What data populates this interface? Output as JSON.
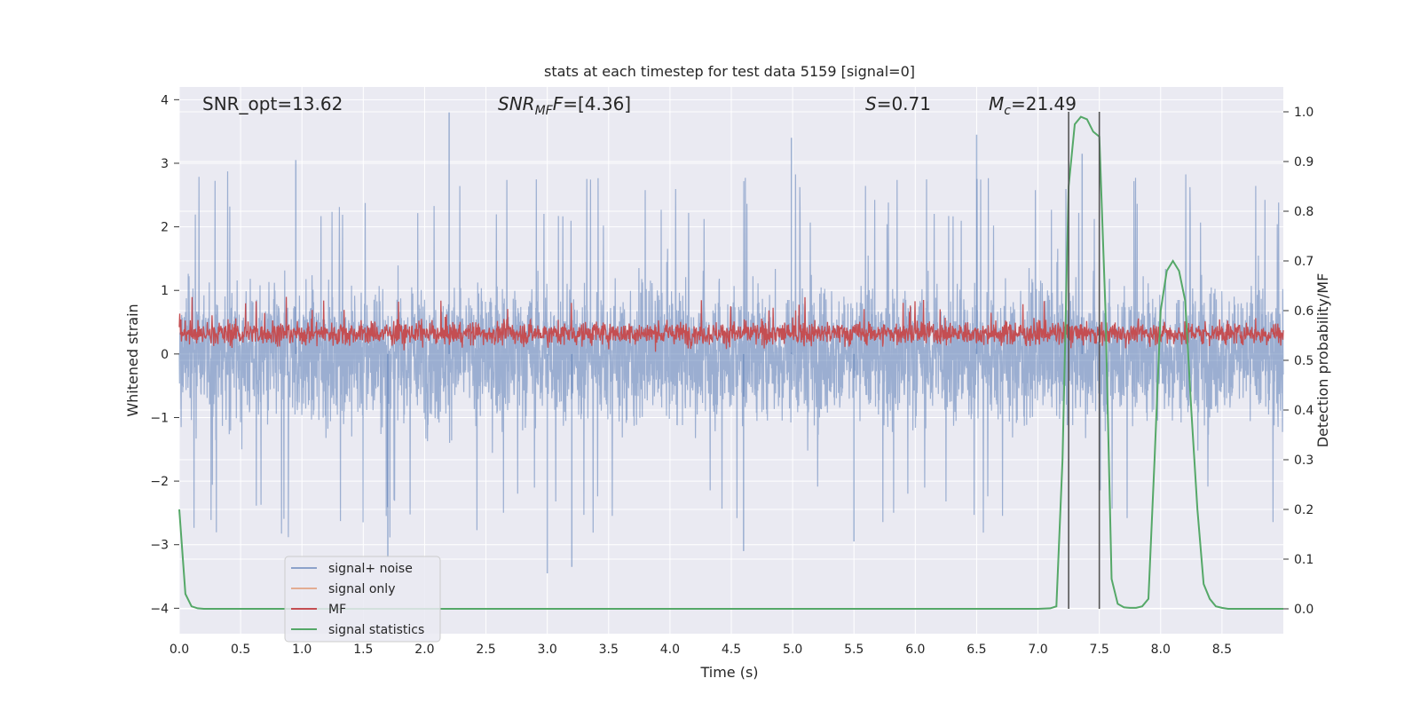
{
  "chart_data": {
    "type": "line",
    "title": "stats at each timestep for test data 5159 [signal=0]",
    "xlabel": "Time (s)",
    "ylabel": "Whitened strain",
    "y2label": "Detection probability/MF",
    "xlim": [
      0.0,
      9.0
    ],
    "ylim": [
      -4.4,
      4.2
    ],
    "y2lim": [
      -0.05,
      1.05
    ],
    "xticks": [
      "0.0",
      "0.5",
      "1.0",
      "1.5",
      "2.0",
      "2.5",
      "3.0",
      "3.5",
      "4.0",
      "4.5",
      "5.0",
      "5.5",
      "6.0",
      "6.5",
      "7.0",
      "7.5",
      "8.0",
      "8.5"
    ],
    "yticks": [
      "4",
      "3",
      "2",
      "1",
      "0",
      "−1",
      "−2",
      "−3",
      "−4"
    ],
    "y2ticks": [
      "1.0",
      "0.9",
      "0.8",
      "0.7",
      "0.6",
      "0.5",
      "0.4",
      "0.3",
      "0.2",
      "0.1",
      "0.0"
    ],
    "grid": true,
    "legend_position": "lower-left",
    "annotations": {
      "snr_opt": "SNR_opt=13.62",
      "snr_mf_main": "SNR",
      "snr_mf_sub": "MF",
      "snr_mf_value": "=[4.36]",
      "s_var": "S",
      "s_value": "=0.71",
      "mc_var": "M",
      "mc_sub": "c",
      "mc_value": "=21.49"
    },
    "vlines_x": [
      7.25,
      7.5
    ],
    "series": [
      {
        "name": "signal+ noise",
        "color": "#4c72b0",
        "opacity": 0.5,
        "axis": "left",
        "noise_band": {
          "typical": [
            -1.6,
            1.6
          ],
          "max": 3.8,
          "min": -3.45
        }
      },
      {
        "name": "signal only",
        "color": "#dd8452",
        "opacity": 0.6,
        "axis": "left",
        "values": []
      },
      {
        "name": "MF",
        "color": "#c44e52",
        "axis": "left",
        "noise_band": {
          "typical": [
            0.05,
            0.6
          ],
          "max": 0.92,
          "min": -0.05
        }
      },
      {
        "name": "signal statistics",
        "color": "#55a868",
        "axis": "right",
        "x": [
          0.0,
          0.05,
          0.1,
          0.15,
          0.2,
          0.3,
          0.5,
          1.0,
          2.0,
          3.0,
          4.0,
          5.0,
          6.0,
          7.0,
          7.1,
          7.15,
          7.2,
          7.25,
          7.3,
          7.35,
          7.4,
          7.45,
          7.5,
          7.55,
          7.6,
          7.65,
          7.7,
          7.75,
          7.8,
          7.85,
          7.9,
          7.95,
          8.0,
          8.05,
          8.1,
          8.15,
          8.2,
          8.25,
          8.3,
          8.35,
          8.4,
          8.45,
          8.5,
          8.55,
          8.6,
          8.7,
          8.8,
          9.0
        ],
        "values": [
          0.2,
          0.03,
          0.005,
          0.001,
          0.0,
          0.0,
          0.0,
          0.0,
          0.0,
          0.0,
          0.0,
          0.0,
          0.0,
          0.0,
          0.001,
          0.005,
          0.3,
          0.85,
          0.975,
          0.99,
          0.985,
          0.96,
          0.95,
          0.6,
          0.06,
          0.01,
          0.003,
          0.002,
          0.002,
          0.005,
          0.02,
          0.3,
          0.6,
          0.68,
          0.7,
          0.68,
          0.62,
          0.4,
          0.2,
          0.05,
          0.02,
          0.005,
          0.002,
          0.0,
          0.0,
          0.0,
          0.0,
          0.0
        ]
      }
    ]
  }
}
